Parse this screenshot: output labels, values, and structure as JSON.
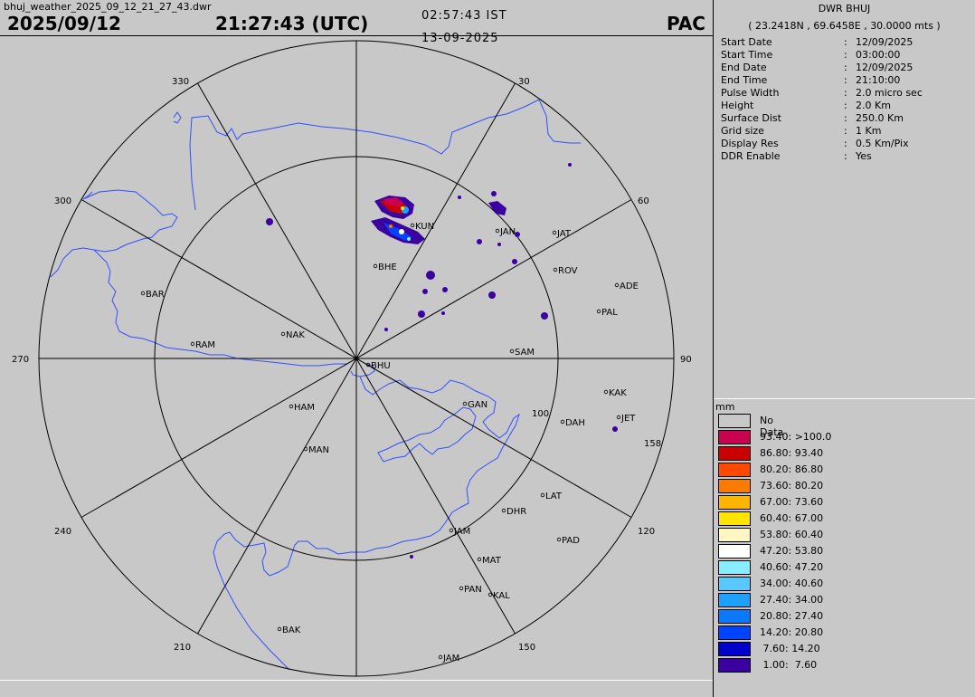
{
  "header": {
    "filename": "bhuj_weather_2025_09_12_21_27_43.dwr",
    "date": "2025/09/12",
    "time_utc": "21:27:43 (UTC)",
    "time_ist": "02:57:43 IST",
    "date_ist": "13-09-2025",
    "product": "PAC"
  },
  "info": {
    "station": "DWR BHUJ",
    "coords": "( 23.2418N , 69.6458E , 30.0000 mts )",
    "params": [
      {
        "key": "Start Date",
        "value": "12/09/2025"
      },
      {
        "key": "Start Time",
        "value": "03:00:00"
      },
      {
        "key": "End Date",
        "value": "12/09/2025"
      },
      {
        "key": "End Time",
        "value": "21:10:00"
      },
      {
        "key": "Pulse Width",
        "value": "2.0 micro sec"
      },
      {
        "key": "Height",
        "value": "2.0 Km"
      },
      {
        "key": "Surface Dist",
        "value": "250.0 Km"
      },
      {
        "key": "Grid size",
        "value": "1 Km"
      },
      {
        "key": "Display Res",
        "value": "0.5 Km/Pix"
      },
      {
        "key": "DDR Enable",
        "value": "Yes"
      }
    ]
  },
  "legend": {
    "unit": "mm",
    "no_data_label": "No Data",
    "items": [
      {
        "label": "93.40: >100.0",
        "color": "#cc0050"
      },
      {
        "label": "86.80: 93.40",
        "color": "#c80000"
      },
      {
        "label": "80.20: 86.80",
        "color": "#ff4800"
      },
      {
        "label": "73.60: 80.20",
        "color": "#ff7a00"
      },
      {
        "label": "67.00: 73.60",
        "color": "#ffb400"
      },
      {
        "label": "60.40: 67.00",
        "color": "#ffe400"
      },
      {
        "label": "53.80: 60.40",
        "color": "#fff6c4"
      },
      {
        "label": "47.20: 53.80",
        "color": "#ffffff"
      },
      {
        "label": "40.60: 47.20",
        "color": "#88eeff"
      },
      {
        "label": "34.00: 40.60",
        "color": "#58c8ff"
      },
      {
        "label": "27.40: 34.00",
        "color": "#1ea0ff"
      },
      {
        "label": "20.80: 27.40",
        "color": "#0a78ff"
      },
      {
        "label": "14.20: 20.80",
        "color": "#0044ff"
      },
      {
        "label": " 7.60: 14.20",
        "color": "#0000cc"
      },
      {
        "label": " 1.00:  7.60",
        "color": "#3c00a0"
      }
    ]
  },
  "map": {
    "azimuth_labels": [
      "30",
      "60",
      "90",
      "120",
      "150",
      "210",
      "240",
      "270",
      "300",
      "330"
    ],
    "extra_labels": [
      "100",
      "158"
    ],
    "stations": [
      "KUN",
      "JAN",
      "JAT",
      "BHE",
      "ROV",
      "ADE",
      "BAR",
      "PAL",
      "NAK",
      "RAM",
      "SAM",
      "BHU",
      "KAK",
      "GAN",
      "JET",
      "DAH",
      "HAM",
      "MAN",
      "LAT",
      "DHR",
      "JAM",
      "PAD",
      "MAT",
      "PAN",
      "KAL",
      "BAK",
      "JAM"
    ],
    "colors": {
      "coast": "#3050ff",
      "rings": "#000000",
      "background": "#c8c8c8"
    }
  }
}
